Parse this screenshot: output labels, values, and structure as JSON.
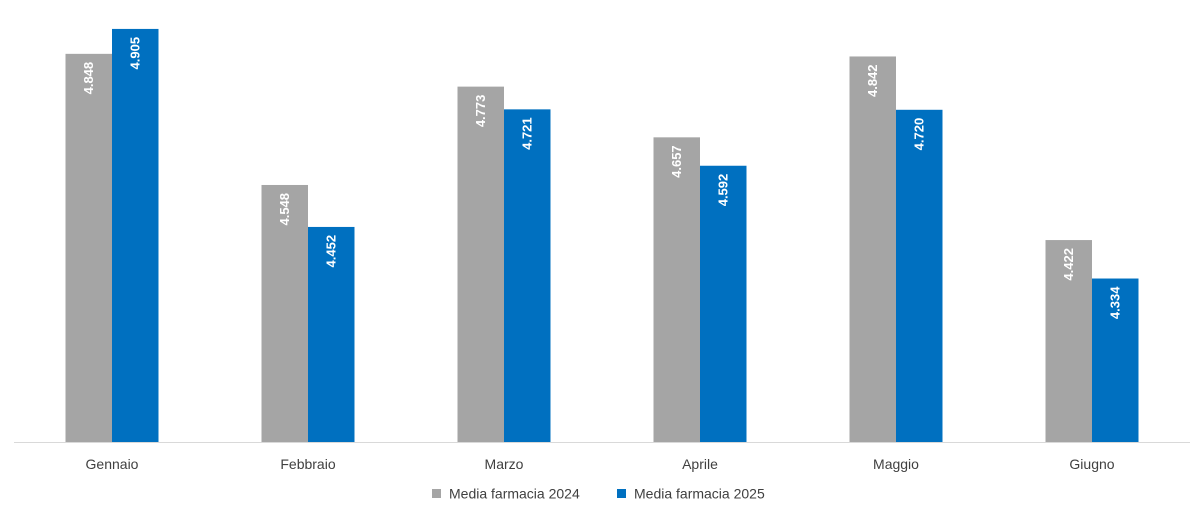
{
  "chart_data": {
    "type": "bar",
    "categories": [
      "Gennaio",
      "Febbraio",
      "Marzo",
      "Aprile",
      "Maggio",
      "Giugno"
    ],
    "series": [
      {
        "name": "Media farmacia 2024",
        "color": "#A5A5A5",
        "values": [
          4.848,
          4.548,
          4.773,
          4.657,
          4.842,
          4.422
        ],
        "labels": [
          "4.848",
          "4.548",
          "4.773",
          "4.657",
          "4.842",
          "4.422"
        ]
      },
      {
        "name": "Media farmacia 2025",
        "color": "#0070C0",
        "values": [
          4.905,
          4.452,
          4.721,
          4.592,
          4.72,
          4.334
        ],
        "labels": [
          "4.905",
          "4.452",
          "4.721",
          "4.592",
          "4.720",
          "4.334"
        ]
      }
    ],
    "ylim": [
      3.96,
      4.93
    ],
    "grid": false,
    "legend": "bottom-center",
    "axis_color": "#D9D9D9"
  }
}
